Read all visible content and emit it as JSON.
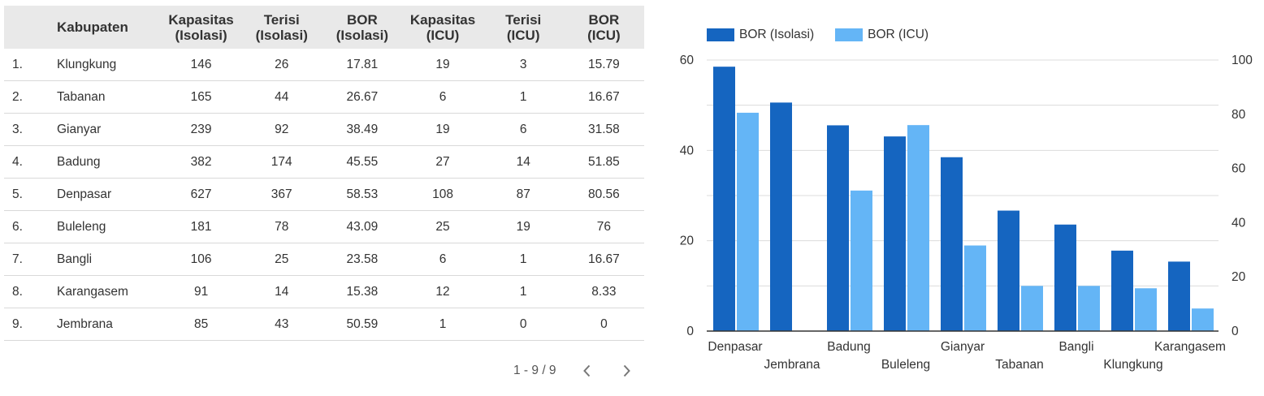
{
  "table": {
    "headers": {
      "kabupaten": "Kabupaten",
      "kap_iso": [
        "Kapasitas",
        "(Isolasi)"
      ],
      "ter_iso": [
        "Terisi",
        "(Isolasi)"
      ],
      "bor_iso": [
        "BOR",
        "(Isolasi)"
      ],
      "kap_icu": [
        "Kapasitas",
        "(ICU)"
      ],
      "ter_icu": [
        "Terisi",
        "(ICU)"
      ],
      "bor_icu": [
        "BOR",
        "(ICU)"
      ]
    },
    "rows": [
      {
        "idx": "1.",
        "name": "Klungkung",
        "kap_iso": "146",
        "ter_iso": "26",
        "bor_iso": "17.81",
        "kap_icu": "19",
        "ter_icu": "3",
        "bor_icu": "15.79"
      },
      {
        "idx": "2.",
        "name": "Tabanan",
        "kap_iso": "165",
        "ter_iso": "44",
        "bor_iso": "26.67",
        "kap_icu": "6",
        "ter_icu": "1",
        "bor_icu": "16.67"
      },
      {
        "idx": "3.",
        "name": "Gianyar",
        "kap_iso": "239",
        "ter_iso": "92",
        "bor_iso": "38.49",
        "kap_icu": "19",
        "ter_icu": "6",
        "bor_icu": "31.58"
      },
      {
        "idx": "4.",
        "name": "Badung",
        "kap_iso": "382",
        "ter_iso": "174",
        "bor_iso": "45.55",
        "kap_icu": "27",
        "ter_icu": "14",
        "bor_icu": "51.85"
      },
      {
        "idx": "5.",
        "name": "Denpasar",
        "kap_iso": "627",
        "ter_iso": "367",
        "bor_iso": "58.53",
        "kap_icu": "108",
        "ter_icu": "87",
        "bor_icu": "80.56"
      },
      {
        "idx": "6.",
        "name": "Buleleng",
        "kap_iso": "181",
        "ter_iso": "78",
        "bor_iso": "43.09",
        "kap_icu": "25",
        "ter_icu": "19",
        "bor_icu": "76"
      },
      {
        "idx": "7.",
        "name": "Bangli",
        "kap_iso": "106",
        "ter_iso": "25",
        "bor_iso": "23.58",
        "kap_icu": "6",
        "ter_icu": "1",
        "bor_icu": "16.67"
      },
      {
        "idx": "8.",
        "name": "Karangasem",
        "kap_iso": "91",
        "ter_iso": "14",
        "bor_iso": "15.38",
        "kap_icu": "12",
        "ter_icu": "1",
        "bor_icu": "8.33"
      },
      {
        "idx": "9.",
        "name": "Jembrana",
        "kap_iso": "85",
        "ter_iso": "43",
        "bor_iso": "50.59",
        "kap_icu": "1",
        "ter_icu": "0",
        "bor_icu": "0"
      }
    ]
  },
  "pagination": {
    "label": "1 - 9 / 9",
    "prev_icon": "chevron-left-icon",
    "next_icon": "chevron-right-icon"
  },
  "chart_data": {
    "type": "bar",
    "categories": [
      "Denpasar",
      "Jembrana",
      "Badung",
      "Buleleng",
      "Gianyar",
      "Tabanan",
      "Bangli",
      "Klungkung",
      "Karangasem"
    ],
    "series": [
      {
        "name": "BOR (Isolasi)",
        "axis": "left",
        "color": "#1565c0",
        "values": [
          58.53,
          50.59,
          45.55,
          43.09,
          38.49,
          26.67,
          23.58,
          17.81,
          15.38
        ]
      },
      {
        "name": "BOR (ICU)",
        "axis": "right",
        "color": "#64b5f6",
        "values": [
          80.56,
          0,
          51.85,
          76,
          31.58,
          16.67,
          16.67,
          15.79,
          8.33
        ]
      }
    ],
    "ylim_left": [
      0,
      60
    ],
    "yticks_left": [
      "0",
      "20",
      "40",
      "60"
    ],
    "ylim_right": [
      0,
      100
    ],
    "yticks_right": [
      "0",
      "20",
      "40",
      "60",
      "80",
      "100"
    ],
    "grid": true,
    "legend_position": "top-left"
  }
}
